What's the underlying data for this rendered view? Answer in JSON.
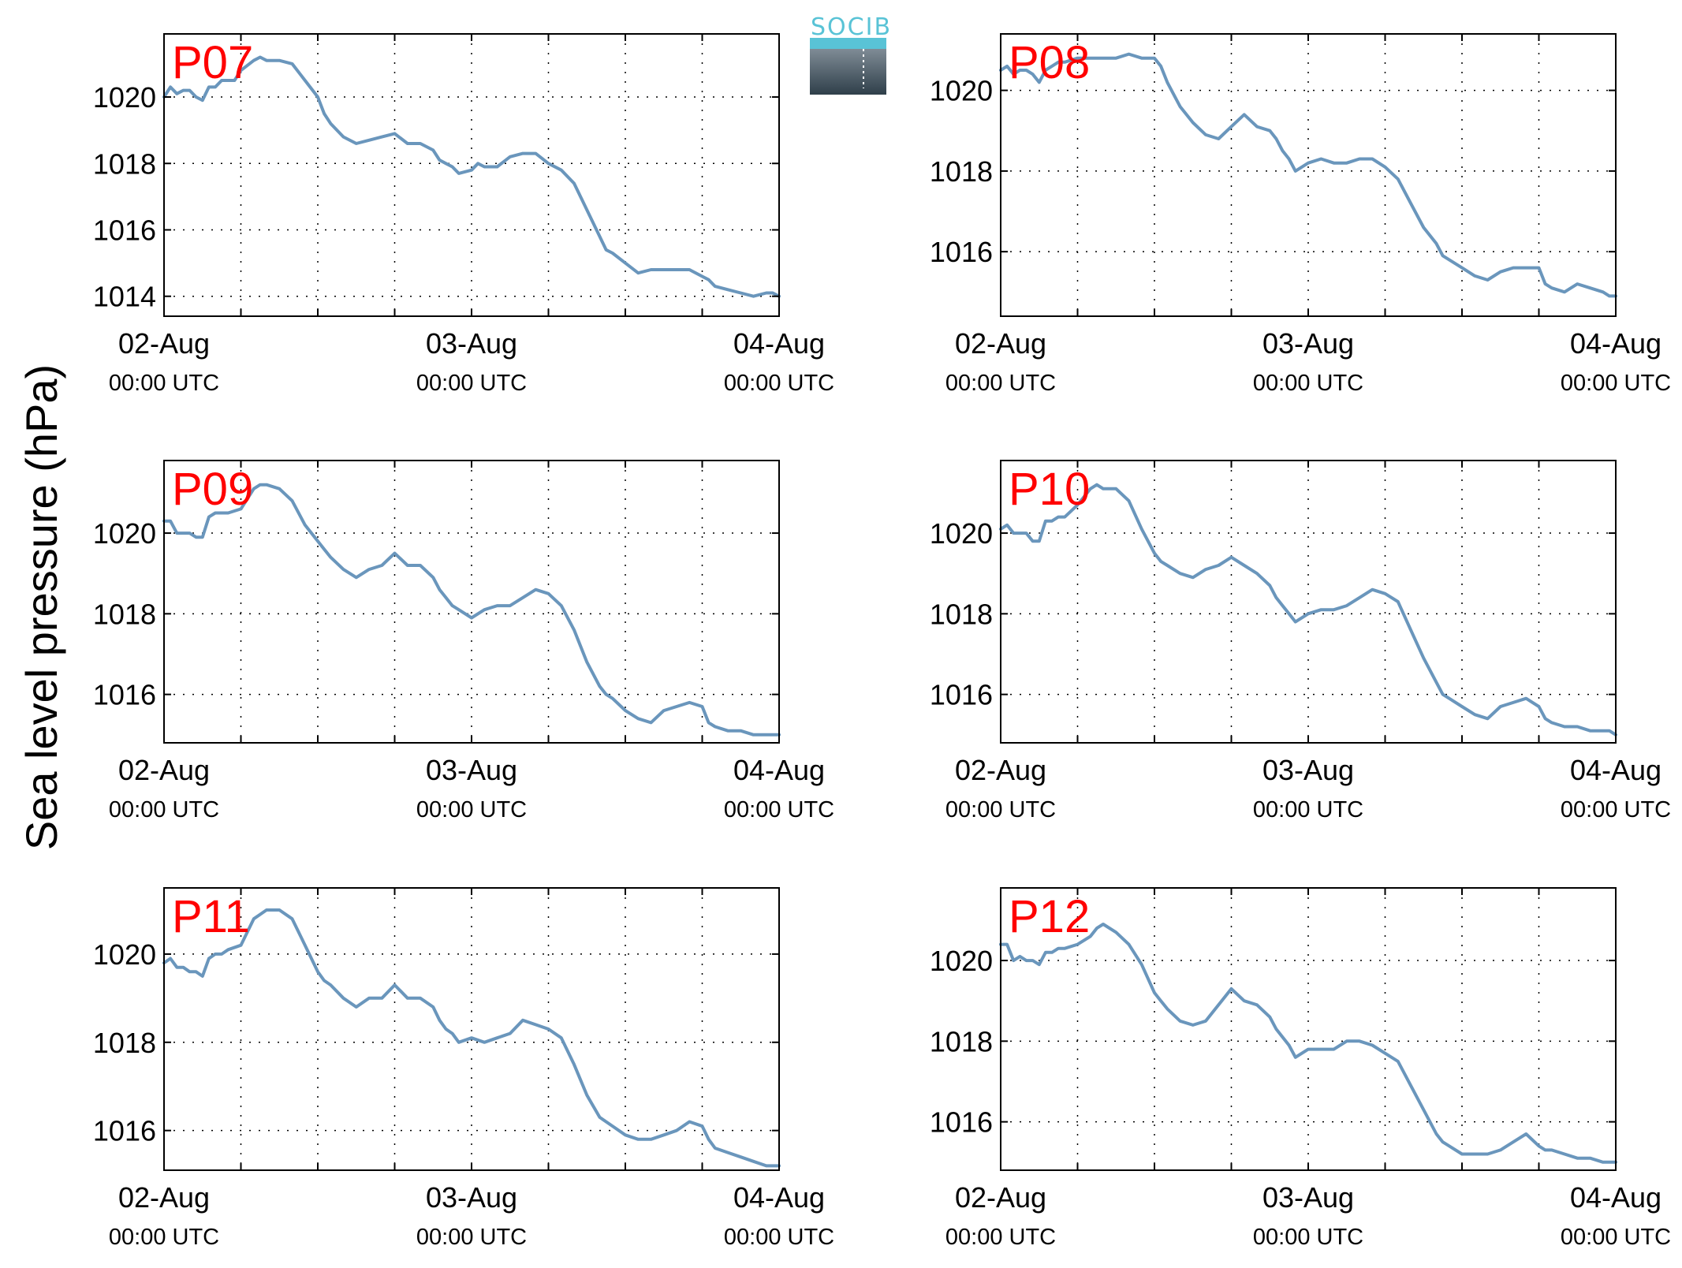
{
  "ylabel": "Sea level pressure (hPa)",
  "logo": {
    "text": "SOCIB"
  },
  "colors": {
    "line": "#6a96bc",
    "title": "#ff0000",
    "logo_text": "#59c3d6",
    "logo_dark": "#2f3f4a"
  },
  "chart_data": [
    {
      "type": "line",
      "title": "P07",
      "xlim": [
        0,
        48
      ],
      "ylim": [
        1013.4,
        1021.9
      ],
      "yticks": [
        1014,
        1016,
        1018,
        1020
      ],
      "xticks": [
        0,
        6,
        12,
        18,
        24,
        30,
        36,
        42,
        48
      ],
      "xtick_labels": [
        {
          "x": 0,
          "date": "02-Aug",
          "time": "00:00 UTC"
        },
        {
          "x": 24,
          "date": "03-Aug",
          "time": "00:00 UTC"
        },
        {
          "x": 48,
          "date": "04-Aug",
          "time": "00:00 UTC"
        }
      ],
      "grid": true,
      "series": [
        {
          "x": [
            0,
            0.5,
            1,
            1.5,
            2,
            2.5,
            3,
            3.5,
            4,
            4.5,
            5,
            5.5,
            6,
            7,
            7.5,
            8,
            9,
            10,
            11,
            12,
            12.5,
            13,
            14,
            15,
            16,
            17,
            18,
            19,
            20,
            21,
            21.5,
            22,
            22.5,
            23,
            24,
            24.5,
            25,
            26,
            27,
            28,
            29,
            30,
            31,
            32,
            33,
            34,
            34.5,
            35,
            36,
            37,
            38,
            39,
            40,
            41,
            42,
            42.5,
            43,
            44,
            45,
            46,
            47,
            47.5,
            48
          ],
          "y": [
            1020.0,
            1020.3,
            1020.1,
            1020.2,
            1020.2,
            1020.0,
            1019.9,
            1020.3,
            1020.3,
            1020.5,
            1020.5,
            1020.5,
            1020.8,
            1021.1,
            1021.2,
            1021.1,
            1021.1,
            1021.0,
            1020.5,
            1020.0,
            1019.5,
            1019.2,
            1018.8,
            1018.6,
            1018.7,
            1018.8,
            1018.9,
            1018.6,
            1018.6,
            1018.4,
            1018.1,
            1018.0,
            1017.9,
            1017.7,
            1017.8,
            1018.0,
            1017.9,
            1017.9,
            1018.2,
            1018.3,
            1018.3,
            1018.0,
            1017.8,
            1017.4,
            1016.6,
            1015.8,
            1015.4,
            1015.3,
            1015.0,
            1014.7,
            1014.8,
            1014.8,
            1014.8,
            1014.8,
            1014.6,
            1014.5,
            1014.3,
            1014.2,
            1014.1,
            1014.0,
            1014.1,
            1014.1,
            1014.0
          ]
        }
      ]
    },
    {
      "type": "line",
      "title": "P08",
      "xlim": [
        0,
        48
      ],
      "ylim": [
        1014.4,
        1021.4
      ],
      "yticks": [
        1016,
        1018,
        1020
      ],
      "xticks": [
        0,
        6,
        12,
        18,
        24,
        30,
        36,
        42,
        48
      ],
      "xtick_labels": [
        {
          "x": 0,
          "date": "02-Aug",
          "time": "00:00 UTC"
        },
        {
          "x": 24,
          "date": "03-Aug",
          "time": "00:00 UTC"
        },
        {
          "x": 48,
          "date": "04-Aug",
          "time": "00:00 UTC"
        }
      ],
      "grid": true,
      "series": [
        {
          "x": [
            0,
            0.5,
            1,
            1.5,
            2,
            2.5,
            3,
            3.5,
            4,
            4.5,
            5,
            6,
            7,
            7.5,
            8,
            9,
            10,
            11,
            12,
            12.5,
            13,
            14,
            15,
            16,
            17,
            18,
            19,
            20,
            21,
            21.5,
            22,
            22.5,
            23,
            24,
            25,
            26,
            27,
            28,
            29,
            30,
            31,
            32,
            33,
            34,
            34.5,
            35,
            36,
            37,
            38,
            39,
            40,
            41,
            42,
            42.5,
            43,
            44,
            45,
            46,
            47,
            47.5,
            48
          ],
          "y": [
            1020.5,
            1020.6,
            1020.4,
            1020.5,
            1020.5,
            1020.4,
            1020.2,
            1020.5,
            1020.6,
            1020.7,
            1020.7,
            1020.8,
            1020.8,
            1020.8,
            1020.8,
            1020.8,
            1020.9,
            1020.8,
            1020.8,
            1020.6,
            1020.2,
            1019.6,
            1019.2,
            1018.9,
            1018.8,
            1019.1,
            1019.4,
            1019.1,
            1019.0,
            1018.8,
            1018.5,
            1018.3,
            1018.0,
            1018.2,
            1018.3,
            1018.2,
            1018.2,
            1018.3,
            1018.3,
            1018.1,
            1017.8,
            1017.2,
            1016.6,
            1016.2,
            1015.9,
            1015.8,
            1015.6,
            1015.4,
            1015.3,
            1015.5,
            1015.6,
            1015.6,
            1015.6,
            1015.2,
            1015.1,
            1015.0,
            1015.2,
            1015.1,
            1015.0,
            1014.9,
            1014.9
          ]
        }
      ]
    },
    {
      "type": "line",
      "title": "P09",
      "xlim": [
        0,
        48
      ],
      "ylim": [
        1014.8,
        1021.8
      ],
      "yticks": [
        1016,
        1018,
        1020
      ],
      "xticks": [
        0,
        6,
        12,
        18,
        24,
        30,
        36,
        42,
        48
      ],
      "xtick_labels": [
        {
          "x": 0,
          "date": "02-Aug",
          "time": "00:00 UTC"
        },
        {
          "x": 24,
          "date": "03-Aug",
          "time": "00:00 UTC"
        },
        {
          "x": 48,
          "date": "04-Aug",
          "time": "00:00 UTC"
        }
      ],
      "grid": true,
      "series": [
        {
          "x": [
            0,
            0.5,
            1,
            1.5,
            2,
            2.5,
            3,
            3.5,
            4,
            4.5,
            5,
            6,
            7,
            7.5,
            8,
            9,
            10,
            11,
            12,
            12.5,
            13,
            14,
            15,
            16,
            17,
            18,
            19,
            20,
            21,
            21.5,
            22,
            22.5,
            23,
            24,
            25,
            26,
            27,
            28,
            29,
            30,
            31,
            32,
            33,
            34,
            34.5,
            35,
            36,
            37,
            38,
            39,
            40,
            41,
            42,
            42.5,
            43,
            44,
            45,
            46,
            47,
            47.5,
            48
          ],
          "y": [
            1020.3,
            1020.3,
            1020.0,
            1020.0,
            1020.0,
            1019.9,
            1019.9,
            1020.4,
            1020.5,
            1020.5,
            1020.5,
            1020.6,
            1021.1,
            1021.2,
            1021.2,
            1021.1,
            1020.8,
            1020.2,
            1019.8,
            1019.6,
            1019.4,
            1019.1,
            1018.9,
            1019.1,
            1019.2,
            1019.5,
            1019.2,
            1019.2,
            1018.9,
            1018.6,
            1018.4,
            1018.2,
            1018.1,
            1017.9,
            1018.1,
            1018.2,
            1018.2,
            1018.4,
            1018.6,
            1018.5,
            1018.2,
            1017.6,
            1016.8,
            1016.2,
            1016.0,
            1015.9,
            1015.6,
            1015.4,
            1015.3,
            1015.6,
            1015.7,
            1015.8,
            1015.7,
            1015.3,
            1015.2,
            1015.1,
            1015.1,
            1015.0,
            1015.0,
            1015.0,
            1015.0
          ]
        }
      ]
    },
    {
      "type": "line",
      "title": "P10",
      "xlim": [
        0,
        48
      ],
      "ylim": [
        1014.8,
        1021.8
      ],
      "yticks": [
        1016,
        1018,
        1020
      ],
      "xticks": [
        0,
        6,
        12,
        18,
        24,
        30,
        36,
        42,
        48
      ],
      "xtick_labels": [
        {
          "x": 0,
          "date": "02-Aug",
          "time": "00:00 UTC"
        },
        {
          "x": 24,
          "date": "03-Aug",
          "time": "00:00 UTC"
        },
        {
          "x": 48,
          "date": "04-Aug",
          "time": "00:00 UTC"
        }
      ],
      "grid": true,
      "series": [
        {
          "x": [
            0,
            0.5,
            1,
            1.5,
            2,
            2.5,
            3,
            3.5,
            4,
            4.5,
            5,
            6,
            7,
            7.5,
            8,
            9,
            10,
            11,
            12,
            12.5,
            13,
            14,
            15,
            16,
            17,
            18,
            19,
            20,
            21,
            21.5,
            22,
            22.5,
            23,
            24,
            25,
            26,
            27,
            28,
            29,
            30,
            31,
            32,
            33,
            34,
            34.5,
            35,
            36,
            37,
            38,
            39,
            40,
            41,
            42,
            42.5,
            43,
            44,
            45,
            46,
            47,
            47.5,
            48
          ],
          "y": [
            1020.1,
            1020.2,
            1020.0,
            1020.0,
            1020.0,
            1019.8,
            1019.8,
            1020.3,
            1020.3,
            1020.4,
            1020.4,
            1020.7,
            1021.1,
            1021.2,
            1021.1,
            1021.1,
            1020.8,
            1020.1,
            1019.5,
            1019.3,
            1019.2,
            1019.0,
            1018.9,
            1019.1,
            1019.2,
            1019.4,
            1019.2,
            1019.0,
            1018.7,
            1018.4,
            1018.2,
            1018.0,
            1017.8,
            1018.0,
            1018.1,
            1018.1,
            1018.2,
            1018.4,
            1018.6,
            1018.5,
            1018.3,
            1017.6,
            1016.9,
            1016.3,
            1016.0,
            1015.9,
            1015.7,
            1015.5,
            1015.4,
            1015.7,
            1015.8,
            1015.9,
            1015.7,
            1015.4,
            1015.3,
            1015.2,
            1015.2,
            1015.1,
            1015.1,
            1015.1,
            1015.0
          ]
        }
      ]
    },
    {
      "type": "line",
      "title": "P11",
      "xlim": [
        0,
        48
      ],
      "ylim": [
        1015.1,
        1021.5
      ],
      "yticks": [
        1016,
        1018,
        1020
      ],
      "xticks": [
        0,
        6,
        12,
        18,
        24,
        30,
        36,
        42,
        48
      ],
      "xtick_labels": [
        {
          "x": 0,
          "date": "02-Aug",
          "time": "00:00 UTC"
        },
        {
          "x": 24,
          "date": "03-Aug",
          "time": "00:00 UTC"
        },
        {
          "x": 48,
          "date": "04-Aug",
          "time": "00:00 UTC"
        }
      ],
      "grid": true,
      "series": [
        {
          "x": [
            0,
            0.5,
            1,
            1.5,
            2,
            2.5,
            3,
            3.5,
            4,
            4.5,
            5,
            6,
            7,
            7.5,
            8,
            9,
            10,
            11,
            12,
            12.5,
            13,
            14,
            15,
            16,
            17,
            18,
            19,
            20,
            21,
            21.5,
            22,
            22.5,
            23,
            24,
            25,
            26,
            27,
            28,
            29,
            30,
            31,
            32,
            33,
            34,
            34.5,
            35,
            36,
            37,
            38,
            39,
            40,
            41,
            42,
            42.5,
            43,
            44,
            45,
            46,
            47,
            47.5,
            48
          ],
          "y": [
            1019.8,
            1019.9,
            1019.7,
            1019.7,
            1019.6,
            1019.6,
            1019.5,
            1019.9,
            1020.0,
            1020.0,
            1020.1,
            1020.2,
            1020.8,
            1020.9,
            1021.0,
            1021.0,
            1020.8,
            1020.2,
            1019.6,
            1019.4,
            1019.3,
            1019.0,
            1018.8,
            1019.0,
            1019.0,
            1019.3,
            1019.0,
            1019.0,
            1018.8,
            1018.5,
            1018.3,
            1018.2,
            1018.0,
            1018.1,
            1018.0,
            1018.1,
            1018.2,
            1018.5,
            1018.4,
            1018.3,
            1018.1,
            1017.5,
            1016.8,
            1016.3,
            1016.2,
            1016.1,
            1015.9,
            1015.8,
            1015.8,
            1015.9,
            1016.0,
            1016.2,
            1016.1,
            1015.8,
            1015.6,
            1015.5,
            1015.4,
            1015.3,
            1015.2,
            1015.2,
            1015.2
          ]
        }
      ]
    },
    {
      "type": "line",
      "title": "P12",
      "xlim": [
        0,
        48
      ],
      "ylim": [
        1014.8,
        1021.8
      ],
      "yticks": [
        1016,
        1018,
        1020
      ],
      "xticks": [
        0,
        6,
        12,
        18,
        24,
        30,
        36,
        42,
        48
      ],
      "xtick_labels": [
        {
          "x": 0,
          "date": "02-Aug",
          "time": "00:00 UTC"
        },
        {
          "x": 24,
          "date": "03-Aug",
          "time": "00:00 UTC"
        },
        {
          "x": 48,
          "date": "04-Aug",
          "time": "00:00 UTC"
        }
      ],
      "grid": true,
      "series": [
        {
          "x": [
            0,
            0.5,
            1,
            1.5,
            2,
            2.5,
            3,
            3.5,
            4,
            4.5,
            5,
            6,
            7,
            7.5,
            8,
            9,
            10,
            11,
            12,
            12.5,
            13,
            14,
            15,
            16,
            17,
            18,
            19,
            20,
            21,
            21.5,
            22,
            22.5,
            23,
            24,
            25,
            26,
            27,
            28,
            29,
            30,
            31,
            32,
            33,
            34,
            34.5,
            35,
            36,
            37,
            38,
            39,
            40,
            41,
            42,
            42.5,
            43,
            44,
            45,
            46,
            47,
            47.5,
            48
          ],
          "y": [
            1020.4,
            1020.4,
            1020.0,
            1020.1,
            1020.0,
            1020.0,
            1019.9,
            1020.2,
            1020.2,
            1020.3,
            1020.3,
            1020.4,
            1020.6,
            1020.8,
            1020.9,
            1020.7,
            1020.4,
            1019.9,
            1019.2,
            1019.0,
            1018.8,
            1018.5,
            1018.4,
            1018.5,
            1018.9,
            1019.3,
            1019.0,
            1018.9,
            1018.6,
            1018.3,
            1018.1,
            1017.9,
            1017.6,
            1017.8,
            1017.8,
            1017.8,
            1018.0,
            1018.0,
            1017.9,
            1017.7,
            1017.5,
            1016.9,
            1016.3,
            1015.7,
            1015.5,
            1015.4,
            1015.2,
            1015.2,
            1015.2,
            1015.3,
            1015.5,
            1015.7,
            1015.4,
            1015.3,
            1015.3,
            1015.2,
            1015.1,
            1015.1,
            1015.0,
            1015.0,
            1015.0
          ]
        }
      ]
    }
  ]
}
